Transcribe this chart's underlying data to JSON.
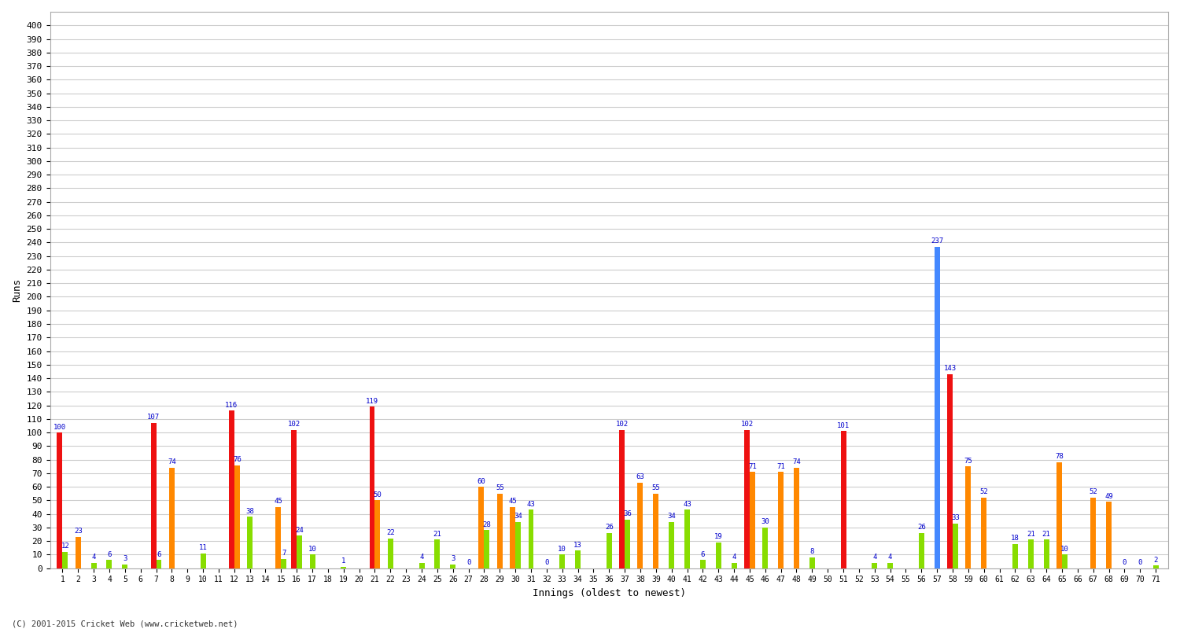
{
  "title": "",
  "xlabel": "Innings (oldest to newest)",
  "ylabel": "Runs",
  "ylim": [
    0,
    410
  ],
  "yticks": [
    0,
    10,
    20,
    30,
    40,
    50,
    60,
    70,
    80,
    90,
    100,
    110,
    120,
    130,
    140,
    150,
    160,
    170,
    180,
    190,
    200,
    210,
    220,
    230,
    240,
    250,
    260,
    270,
    280,
    290,
    300,
    310,
    320,
    330,
    340,
    350,
    360,
    370,
    380,
    390,
    400
  ],
  "footer": "(C) 2001-2015 Cricket Web (www.cricketweb.net)",
  "innings": [
    {
      "num": 1,
      "vals": [
        100,
        12
      ],
      "colors": [
        "red",
        "green"
      ]
    },
    {
      "num": 2,
      "vals": [
        23
      ],
      "colors": [
        "orange"
      ]
    },
    {
      "num": 3,
      "vals": [
        4
      ],
      "colors": [
        "green"
      ]
    },
    {
      "num": 4,
      "vals": [
        6
      ],
      "colors": [
        "green"
      ]
    },
    {
      "num": 5,
      "vals": [
        3
      ],
      "colors": [
        "green"
      ]
    },
    {
      "num": 6,
      "vals": [],
      "colors": []
    },
    {
      "num": 7,
      "vals": [
        107,
        6
      ],
      "colors": [
        "red",
        "green"
      ]
    },
    {
      "num": 8,
      "vals": [
        74
      ],
      "colors": [
        "orange"
      ]
    },
    {
      "num": 9,
      "vals": [],
      "colors": []
    },
    {
      "num": 10,
      "vals": [
        11
      ],
      "colors": [
        "green"
      ]
    },
    {
      "num": 11,
      "vals": [],
      "colors": []
    },
    {
      "num": 12,
      "vals": [
        116,
        76
      ],
      "colors": [
        "red",
        "orange"
      ]
    },
    {
      "num": 13,
      "vals": [
        38
      ],
      "colors": [
        "green"
      ]
    },
    {
      "num": 14,
      "vals": [],
      "colors": []
    },
    {
      "num": 15,
      "vals": [
        45,
        7
      ],
      "colors": [
        "orange",
        "green"
      ]
    },
    {
      "num": 16,
      "vals": [
        102,
        24
      ],
      "colors": [
        "red",
        "green"
      ]
    },
    {
      "num": 17,
      "vals": [
        10
      ],
      "colors": [
        "green"
      ]
    },
    {
      "num": 18,
      "vals": [],
      "colors": []
    },
    {
      "num": 19,
      "vals": [
        1
      ],
      "colors": [
        "green"
      ]
    },
    {
      "num": 20,
      "vals": [],
      "colors": []
    },
    {
      "num": 21,
      "vals": [
        119,
        50
      ],
      "colors": [
        "red",
        "orange"
      ]
    },
    {
      "num": 22,
      "vals": [
        22
      ],
      "colors": [
        "green"
      ]
    },
    {
      "num": 23,
      "vals": [],
      "colors": []
    },
    {
      "num": 24,
      "vals": [
        4
      ],
      "colors": [
        "green"
      ]
    },
    {
      "num": 25,
      "vals": [
        21
      ],
      "colors": [
        "green"
      ]
    },
    {
      "num": 26,
      "vals": [
        3
      ],
      "colors": [
        "green"
      ]
    },
    {
      "num": 27,
      "vals": [
        0
      ],
      "colors": [
        "green"
      ]
    },
    {
      "num": 28,
      "vals": [
        60,
        28
      ],
      "colors": [
        "orange",
        "green"
      ]
    },
    {
      "num": 29,
      "vals": [
        55
      ],
      "colors": [
        "orange"
      ]
    },
    {
      "num": 30,
      "vals": [
        45,
        34
      ],
      "colors": [
        "orange",
        "green"
      ]
    },
    {
      "num": 31,
      "vals": [
        43
      ],
      "colors": [
        "green"
      ]
    },
    {
      "num": 32,
      "vals": [
        0
      ],
      "colors": [
        "green"
      ]
    },
    {
      "num": 33,
      "vals": [
        10
      ],
      "colors": [
        "green"
      ]
    },
    {
      "num": 34,
      "vals": [
        13
      ],
      "colors": [
        "green"
      ]
    },
    {
      "num": 35,
      "vals": [],
      "colors": []
    },
    {
      "num": 36,
      "vals": [
        26
      ],
      "colors": [
        "green"
      ]
    },
    {
      "num": 37,
      "vals": [
        102,
        36
      ],
      "colors": [
        "red",
        "green"
      ]
    },
    {
      "num": 38,
      "vals": [
        63
      ],
      "colors": [
        "orange"
      ]
    },
    {
      "num": 39,
      "vals": [
        55
      ],
      "colors": [
        "orange"
      ]
    },
    {
      "num": 40,
      "vals": [
        34
      ],
      "colors": [
        "green"
      ]
    },
    {
      "num": 41,
      "vals": [
        43
      ],
      "colors": [
        "green"
      ]
    },
    {
      "num": 42,
      "vals": [
        6
      ],
      "colors": [
        "green"
      ]
    },
    {
      "num": 43,
      "vals": [
        19
      ],
      "colors": [
        "green"
      ]
    },
    {
      "num": 44,
      "vals": [
        4
      ],
      "colors": [
        "green"
      ]
    },
    {
      "num": 45,
      "vals": [
        102,
        71
      ],
      "colors": [
        "red",
        "orange"
      ]
    },
    {
      "num": 46,
      "vals": [
        30
      ],
      "colors": [
        "green"
      ]
    },
    {
      "num": 47,
      "vals": [
        71
      ],
      "colors": [
        "orange"
      ]
    },
    {
      "num": 48,
      "vals": [
        74
      ],
      "colors": [
        "orange"
      ]
    },
    {
      "num": 49,
      "vals": [
        8
      ],
      "colors": [
        "green"
      ]
    },
    {
      "num": 50,
      "vals": [],
      "colors": []
    },
    {
      "num": 51,
      "vals": [
        101
      ],
      "colors": [
        "red"
      ]
    },
    {
      "num": 52,
      "vals": [],
      "colors": []
    },
    {
      "num": 53,
      "vals": [
        4
      ],
      "colors": [
        "green"
      ]
    },
    {
      "num": 54,
      "vals": [
        4
      ],
      "colors": [
        "green"
      ]
    },
    {
      "num": 55,
      "vals": [],
      "colors": []
    },
    {
      "num": 56,
      "vals": [
        26
      ],
      "colors": [
        "green"
      ]
    },
    {
      "num": 57,
      "vals": [
        237
      ],
      "colors": [
        "blue"
      ]
    },
    {
      "num": 58,
      "vals": [
        143,
        33
      ],
      "colors": [
        "red",
        "green"
      ]
    },
    {
      "num": 59,
      "vals": [
        75
      ],
      "colors": [
        "orange"
      ]
    },
    {
      "num": 60,
      "vals": [
        52
      ],
      "colors": [
        "orange"
      ]
    },
    {
      "num": 61,
      "vals": [],
      "colors": []
    },
    {
      "num": 62,
      "vals": [
        18
      ],
      "colors": [
        "green"
      ]
    },
    {
      "num": 63,
      "vals": [
        21
      ],
      "colors": [
        "green"
      ]
    },
    {
      "num": 64,
      "vals": [
        21
      ],
      "colors": [
        "green"
      ]
    },
    {
      "num": 65,
      "vals": [
        78,
        10
      ],
      "colors": [
        "orange",
        "green"
      ]
    },
    {
      "num": 66,
      "vals": [],
      "colors": []
    },
    {
      "num": 67,
      "vals": [
        52
      ],
      "colors": [
        "orange"
      ]
    },
    {
      "num": 68,
      "vals": [
        49
      ],
      "colors": [
        "orange"
      ]
    },
    {
      "num": 69,
      "vals": [
        0
      ],
      "colors": [
        "green"
      ]
    },
    {
      "num": 70,
      "vals": [
        0
      ],
      "colors": [
        "green"
      ]
    },
    {
      "num": 71,
      "vals": [
        2
      ],
      "colors": [
        "green"
      ]
    }
  ],
  "bar_width": 0.35,
  "color_map": {
    "red": "#ee1111",
    "orange": "#ff8800",
    "green": "#88dd00",
    "blue": "#4488ff"
  },
  "bg_color": "#ffffff",
  "grid_color": "#cccccc",
  "label_color": "#0000cc",
  "label_fontsize": 6.5
}
